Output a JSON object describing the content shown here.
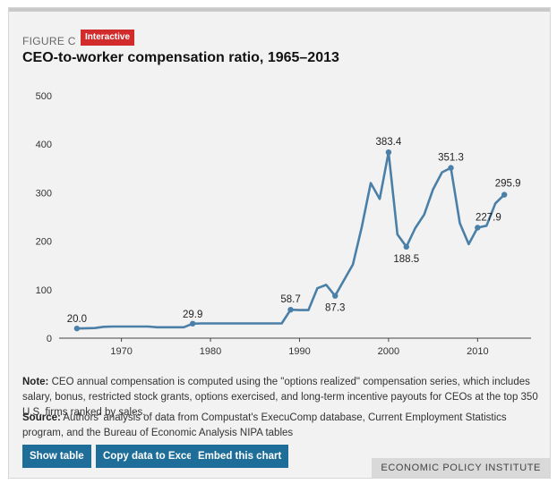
{
  "figure": {
    "label": "FIGURE C",
    "badge": "Interactive",
    "title": "CEO-to-worker compensation ratio, 1965–2013"
  },
  "colors": {
    "line": "#4a80a8",
    "badge": "#d22b2b",
    "button": "#1f6e9a"
  },
  "chart_data": {
    "type": "line",
    "title": "CEO-to-worker compensation ratio, 1965–2013",
    "xlabel": "",
    "ylabel": "",
    "xlim": [
      1963,
      2016
    ],
    "ylim": [
      0,
      500
    ],
    "yticks": [
      0,
      100,
      200,
      300,
      400,
      500
    ],
    "xticks": [
      1970,
      1980,
      1990,
      2000,
      2010
    ],
    "grid": false,
    "series": [
      {
        "x": [
          1965,
          1966,
          1967,
          1968,
          1969,
          1970,
          1971,
          1972,
          1973,
          1974,
          1975,
          1976,
          1977,
          1978,
          1979,
          1980,
          1981,
          1982,
          1983,
          1984,
          1985,
          1986,
          1987,
          1988,
          1989,
          1990,
          1991,
          1992,
          1993,
          1994,
          1995,
          1996,
          1997,
          1998,
          1999,
          2000,
          2001,
          2002,
          2003,
          2004,
          2005,
          2006,
          2007,
          2008,
          2009,
          2010,
          2011,
          2012,
          2013
        ],
        "y": [
          20.0,
          20.5,
          20.8,
          23.5,
          24.0,
          24.0,
          24.0,
          24.0,
          24.0,
          22.5,
          22.5,
          22.5,
          22.5,
          29.9,
          30.5,
          30.5,
          30.5,
          30.5,
          30.5,
          30.5,
          30.5,
          30.5,
          30.5,
          30.5,
          58.7,
          58.0,
          58.0,
          103.0,
          110.0,
          87.3,
          120.0,
          152.0,
          230.0,
          320.0,
          287.0,
          383.4,
          214.0,
          188.5,
          227.0,
          255.0,
          307.0,
          342.0,
          351.3,
          237.0,
          194.0,
          227.9,
          232.0,
          278.0,
          295.9
        ]
      }
    ],
    "labeled_points": [
      {
        "x": 1965,
        "y": 20.0,
        "label": "20.0"
      },
      {
        "x": 1978,
        "y": 29.9,
        "label": "29.9"
      },
      {
        "x": 1989,
        "y": 58.7,
        "label": "58.7"
      },
      {
        "x": 1994,
        "y": 87.3,
        "label": "87.3"
      },
      {
        "x": 2000,
        "y": 383.4,
        "label": "383.4"
      },
      {
        "x": 2002,
        "y": 188.5,
        "label": "188.5"
      },
      {
        "x": 2007,
        "y": 351.3,
        "label": "351.3"
      },
      {
        "x": 2010,
        "y": 227.9,
        "label": "227.9"
      },
      {
        "x": 2013,
        "y": 295.9,
        "label": "295.9"
      }
    ]
  },
  "note": {
    "label": "Note:",
    "text": "CEO annual compensation is computed using the \"options realized\" compensation series, which includes salary, bonus, restricted stock grants, options exercised, and long-term incentive payouts for CEOs at the top 350 U.S. firms ranked by sales."
  },
  "source": {
    "label": "Source:",
    "text": "Authors' analysis of data from Compustat's ExecuComp database, Current Employment Statistics program, and the Bureau of Economic Analysis NIPA tables"
  },
  "buttons": {
    "show_table": "Show table",
    "copy_excel": "Copy data to Excel",
    "embed": "Embed this chart"
  },
  "branding": "ECONOMIC POLICY INSTITUTE"
}
